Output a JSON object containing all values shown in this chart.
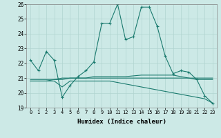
{
  "xlabel": "Humidex (Indice chaleur)",
  "xlim": [
    -0.5,
    23.5
  ],
  "ylim": [
    19,
    26
  ],
  "yticks": [
    19,
    20,
    21,
    22,
    23,
    24,
    25,
    26
  ],
  "xticks": [
    0,
    1,
    2,
    3,
    4,
    5,
    6,
    7,
    8,
    9,
    10,
    11,
    12,
    13,
    14,
    15,
    16,
    17,
    18,
    19,
    20,
    21,
    22,
    23
  ],
  "bg_color": "#cce9e6",
  "grid_color": "#b0d4d0",
  "line_color": "#1a7a6e",
  "line1_x": [
    0,
    1,
    2,
    3,
    4,
    5,
    6,
    7,
    8,
    9,
    10,
    11,
    12,
    13,
    14,
    15,
    16,
    17,
    18,
    19,
    20,
    21,
    22,
    23
  ],
  "line1_y": [
    22.2,
    21.5,
    22.8,
    22.2,
    19.7,
    20.5,
    21.1,
    21.5,
    22.1,
    24.7,
    24.7,
    26.0,
    23.6,
    23.8,
    25.8,
    25.8,
    24.5,
    22.5,
    21.3,
    21.5,
    21.4,
    20.9,
    19.8,
    19.3
  ],
  "line2_x": [
    0,
    1,
    2,
    3,
    4,
    5,
    6,
    7,
    8,
    9,
    10,
    11,
    12,
    13,
    14,
    15,
    16,
    17,
    18,
    19,
    20,
    21,
    22,
    23
  ],
  "line2_y": [
    20.8,
    20.8,
    20.8,
    20.8,
    20.4,
    20.8,
    20.8,
    20.8,
    20.8,
    20.8,
    20.8,
    20.7,
    20.6,
    20.5,
    20.4,
    20.3,
    20.2,
    20.1,
    20.0,
    19.9,
    19.8,
    19.7,
    19.6,
    19.3
  ],
  "line3_x": [
    0,
    1,
    2,
    3,
    4,
    5,
    6,
    7,
    8,
    9,
    10,
    11,
    12,
    13,
    14,
    15,
    16,
    17,
    18,
    19,
    20,
    21,
    22,
    23
  ],
  "line3_y": [
    20.9,
    20.9,
    20.9,
    20.9,
    21.0,
    21.0,
    21.0,
    21.0,
    21.0,
    21.0,
    21.0,
    21.0,
    21.0,
    21.0,
    21.0,
    21.0,
    21.0,
    21.0,
    21.0,
    21.0,
    21.0,
    21.0,
    21.0,
    21.0
  ],
  "line4_x": [
    0,
    1,
    2,
    3,
    4,
    5,
    6,
    7,
    8,
    9,
    10,
    11,
    12,
    13,
    14,
    15,
    16,
    17,
    18,
    19,
    20,
    21,
    22,
    23
  ],
  "line4_y": [
    20.8,
    20.8,
    20.8,
    20.9,
    20.9,
    21.0,
    21.0,
    21.0,
    21.1,
    21.1,
    21.1,
    21.1,
    21.1,
    21.15,
    21.2,
    21.2,
    21.2,
    21.2,
    21.2,
    21.1,
    21.0,
    20.9,
    20.9,
    20.9
  ]
}
